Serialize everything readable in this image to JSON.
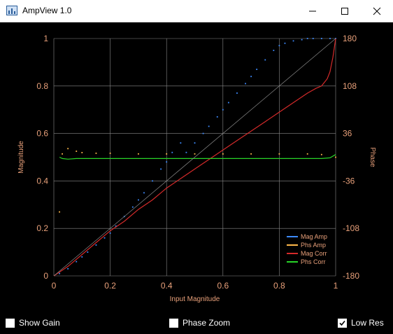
{
  "window": {
    "title": "AmpView 1.0"
  },
  "titlebar_icons": {
    "minimize": "minimize-icon",
    "maximize": "maximize-icon",
    "close": "close-icon"
  },
  "colors": {
    "label": "#e8a07a",
    "grid": "#8a8a8a",
    "identity": "#8a8a8a",
    "mag_amp": "#3d8bff",
    "phs_amp": "#ffb84a",
    "mag_corr": "#d42a2a",
    "phs_corr": "#28d428"
  },
  "chart_data": {
    "type": "scatter",
    "title": "",
    "xlabel": "Input Magnitude",
    "ylabel": "Magnitude",
    "y2label": "Phase",
    "xlim": [
      0,
      1
    ],
    "ylim": [
      0,
      1
    ],
    "y2lim": [
      -180,
      180
    ],
    "xticks": [
      "0",
      "0.2",
      "0.4",
      "0.6",
      "0.8",
      "1"
    ],
    "yticks": [
      "0",
      "0.2",
      "0.4",
      "0.6",
      "0.8",
      "1"
    ],
    "y2ticks": [
      "-180",
      "-108",
      "-36",
      "36",
      "108",
      "180"
    ],
    "grid": true,
    "legend_position": "bottom-right",
    "series": [
      {
        "name": "Mag Amp",
        "axis": "left",
        "style": "dots",
        "x": [
          0.02,
          0.05,
          0.08,
          0.1,
          0.12,
          0.15,
          0.18,
          0.2,
          0.22,
          0.25,
          0.28,
          0.3,
          0.32,
          0.35,
          0.38,
          0.4,
          0.42,
          0.45,
          0.47,
          0.5,
          0.53,
          0.55,
          0.58,
          0.6,
          0.62,
          0.65,
          0.68,
          0.7,
          0.72,
          0.75,
          0.78,
          0.8,
          0.82,
          0.85,
          0.88,
          0.9,
          0.92,
          0.95,
          0.98,
          1.0
        ],
        "y": [
          0.01,
          0.03,
          0.06,
          0.08,
          0.1,
          0.13,
          0.16,
          0.18,
          0.21,
          0.25,
          0.29,
          0.32,
          0.35,
          0.4,
          0.45,
          0.48,
          0.52,
          0.56,
          0.52,
          0.56,
          0.6,
          0.63,
          0.67,
          0.7,
          0.73,
          0.77,
          0.81,
          0.84,
          0.87,
          0.91,
          0.95,
          0.97,
          0.98,
          0.99,
          0.995,
          1.0,
          1.0,
          1.0,
          1.0,
          1.0
        ]
      },
      {
        "name": "Phs Amp",
        "axis": "right",
        "style": "dots",
        "x": [
          0.02,
          0.03,
          0.05,
          0.08,
          0.1,
          0.15,
          0.2,
          0.3,
          0.4,
          0.5,
          0.6,
          0.7,
          0.8,
          0.9,
          0.95,
          1.0
        ],
        "y": [
          -83,
          5,
          13,
          9,
          7,
          6,
          6,
          5,
          5,
          5,
          5,
          5,
          5,
          5,
          4,
          0
        ]
      },
      {
        "name": "Mag Corr",
        "axis": "left",
        "style": "line",
        "x": [
          0,
          0.05,
          0.1,
          0.15,
          0.2,
          0.25,
          0.3,
          0.35,
          0.4,
          0.45,
          0.5,
          0.55,
          0.6,
          0.65,
          0.7,
          0.75,
          0.8,
          0.85,
          0.9,
          0.93,
          0.95,
          0.97,
          0.98,
          0.99,
          1.0
        ],
        "y": [
          0,
          0.04,
          0.09,
          0.14,
          0.19,
          0.23,
          0.28,
          0.32,
          0.37,
          0.41,
          0.45,
          0.49,
          0.53,
          0.57,
          0.61,
          0.65,
          0.69,
          0.73,
          0.77,
          0.79,
          0.8,
          0.83,
          0.86,
          0.92,
          1.0
        ]
      },
      {
        "name": "Phs Corr",
        "axis": "right",
        "style": "line",
        "x": [
          0.02,
          0.03,
          0.05,
          0.08,
          0.1,
          0.2,
          0.3,
          0.4,
          0.5,
          0.6,
          0.7,
          0.8,
          0.9,
          0.95,
          0.98,
          1.0
        ],
        "y": [
          0,
          -2,
          -3,
          -2,
          -2,
          -2,
          -2,
          -2,
          -2,
          -2,
          -2,
          -2,
          -2,
          -2,
          -1,
          4
        ]
      },
      {
        "name": "",
        "axis": "left",
        "style": "thin-line",
        "x": [
          0,
          1
        ],
        "y": [
          0,
          1
        ]
      }
    ]
  },
  "controls": {
    "show_gain": {
      "label": "Show Gain",
      "checked": false
    },
    "phase_zoom": {
      "label": "Phase Zoom",
      "checked": false
    },
    "low_res": {
      "label": "Low Res",
      "checked": true
    }
  }
}
